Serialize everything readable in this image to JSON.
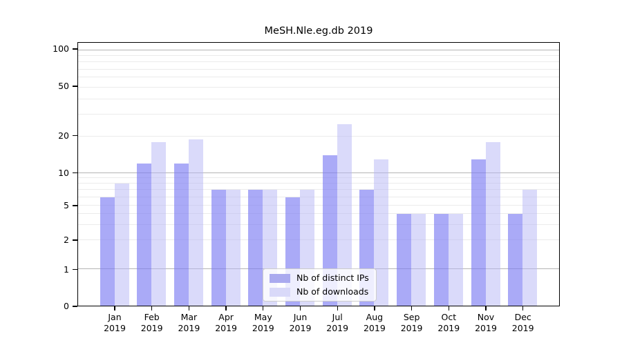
{
  "title": "MeSH.Nle.eg.db 2019",
  "chart_data": {
    "type": "bar",
    "title": "MeSH.Nle.eg.db 2019",
    "categories": [
      "Jan",
      "Feb",
      "Mar",
      "Apr",
      "May",
      "Jun",
      "Jul",
      "Aug",
      "Sep",
      "Oct",
      "Nov",
      "Dec"
    ],
    "category_year": "2019",
    "series": [
      {
        "name": "Nb of distinct IPs",
        "legend_color": "#aaaaef",
        "bar_color": "rgba(124,124,243,0.65)",
        "values": [
          6,
          12,
          12,
          7,
          7,
          6,
          14,
          7,
          4,
          4,
          13,
          4
        ]
      },
      {
        "name": "Nb of downloads",
        "legend_color": "#d9d9f9",
        "bar_color": "rgba(181,181,245,0.5)",
        "values": [
          8,
          18,
          19,
          7,
          7,
          7,
          25,
          13,
          4,
          4,
          18,
          7
        ]
      }
    ],
    "yticks": [
      0,
      1,
      2,
      5,
      10,
      20,
      50,
      100
    ],
    "ylim": [
      0,
      114
    ],
    "yscale": "log-like",
    "xlabel": "",
    "ylabel": "",
    "grid": {
      "on": true,
      "major_lines": [
        1,
        10,
        100
      ],
      "minor_lines": [
        2,
        3,
        4,
        5,
        6,
        7,
        8,
        9,
        20,
        30,
        40,
        50,
        60,
        70,
        80,
        90
      ],
      "major_color": "#b4b4b4",
      "minor_color": "#ebebeb"
    },
    "legend": {
      "position": "inside-lower-center",
      "entries": [
        "Nb of distinct IPs",
        "Nb of downloads"
      ]
    }
  }
}
